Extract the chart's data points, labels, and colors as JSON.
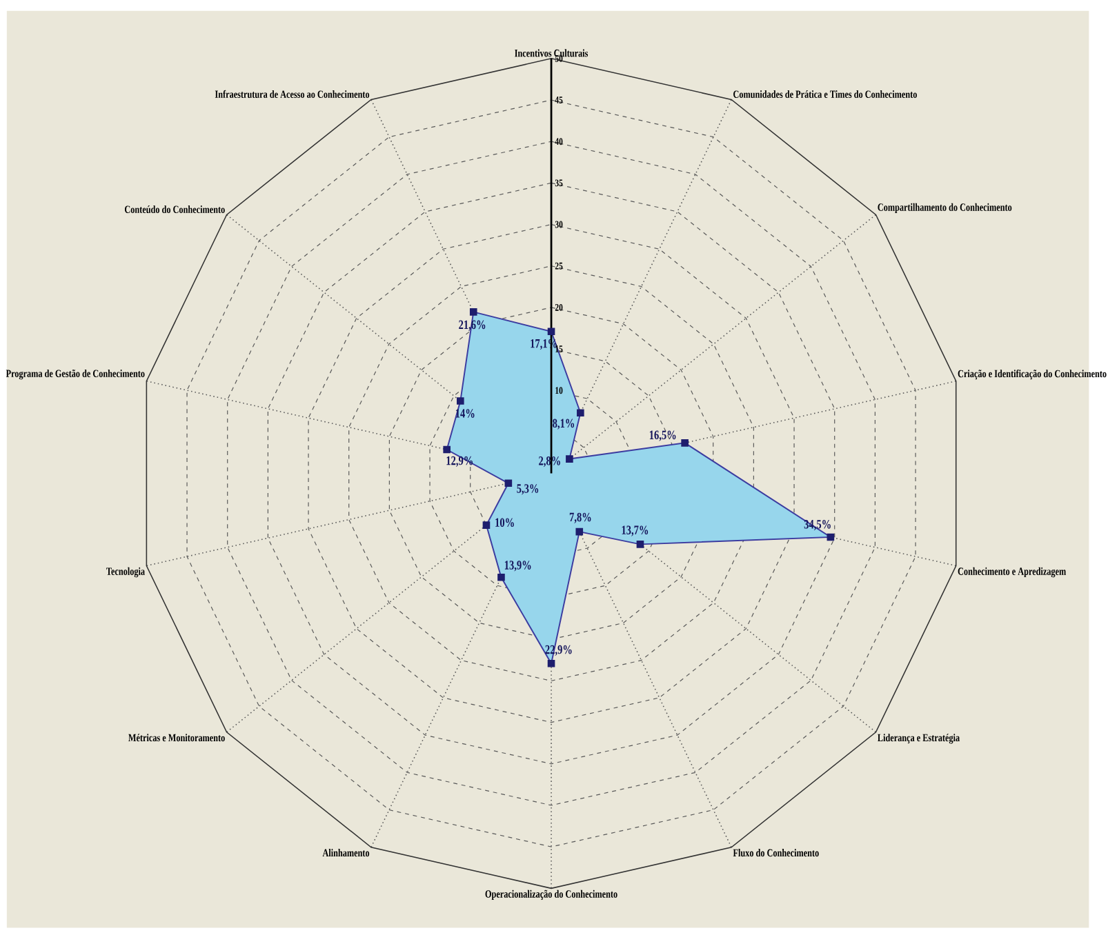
{
  "chart_data": {
    "type": "radar",
    "categories": [
      "Incentivos Culturais",
      "Comunidades de Prática e Times do Conhecimento",
      "Compartilhamento do Conhecimento",
      "Criação e Identificação do Conhecimento",
      "Conhecimento e Apredizagem",
      "Liderança e Estratégia",
      "Fluxo do Conhecimento",
      "Operacionalização do Conhecimento",
      "Alinhamento",
      "Métricas e Monitoramento",
      "Tecnologia",
      "Programa de Gestão de Conhecimento",
      "Conteúdo do Conhecimento",
      "Infraestrutura de Acesso ao Conhecimento"
    ],
    "series": [
      {
        "color": "#97d6ec",
        "values": [
          17.1,
          8.1,
          2.8,
          16.5,
          34.5,
          13.7,
          7.8,
          22.9,
          13.9,
          10,
          5.3,
          12.9,
          14,
          21.6
        ],
        "value_labels": [
          "17,1%",
          "8,1%",
          "2,8%",
          "16,5%",
          "34,5%",
          "13,7%",
          "7,8%",
          "22,9%",
          "13,9%",
          "10%",
          "5,3%",
          "12,9%",
          "14%",
          "21,6%"
        ]
      }
    ],
    "ylim": [
      0,
      50
    ],
    "yticks": [
      10,
      15,
      20,
      25,
      30,
      35,
      40,
      45,
      50
    ],
    "marker": "square",
    "grid": true
  }
}
